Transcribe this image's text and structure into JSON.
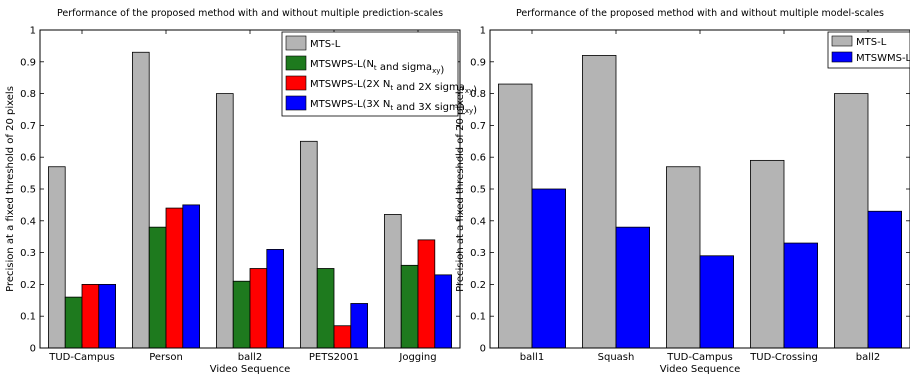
{
  "chart_data": [
    {
      "type": "bar",
      "title": "Performance of the proposed method with and without multiple prediction-scales",
      "xlabel": "Video Sequence",
      "ylabel": "Precision at a fixed threshold of 20 pixels",
      "ylim": [
        0,
        1
      ],
      "yticks": [
        "0",
        "0.1",
        "0.2",
        "0.3",
        "0.4",
        "0.5",
        "0.6",
        "0.7",
        "0.8",
        "0.9",
        "1"
      ],
      "categories": [
        "TUD-Campus",
        "Person",
        "ball2",
        "PETS2001",
        "Jogging"
      ],
      "legend_position": "top-right",
      "series": [
        {
          "name": "MTS-L",
          "color": "#b4b4b4",
          "values": [
            0.57,
            0.93,
            0.8,
            0.65,
            0.42
          ]
        },
        {
          "name": "MTSWPS-L(Nt and sigmaxy)",
          "color": "#1e7a1e",
          "values": [
            0.16,
            0.38,
            0.21,
            0.25,
            0.26
          ]
        },
        {
          "name": "MTSWPS-L(2X Nt and 2X sigmaxy)",
          "color": "#ff0000",
          "values": [
            0.2,
            0.44,
            0.25,
            0.07,
            0.34
          ]
        },
        {
          "name": "MTSWPS-L(3X Nt and 3X sigmaxy)",
          "color": "#0000ff",
          "values": [
            0.2,
            0.45,
            0.31,
            0.14,
            0.23
          ]
        }
      ]
    },
    {
      "type": "bar",
      "title": "Performance of the proposed method with and without multiple model-scales",
      "xlabel": "Video Sequence",
      "ylabel": "Precision at a fixed threshold of 20 pixels",
      "ylim": [
        0,
        1
      ],
      "yticks": [
        "0",
        "0.1",
        "0.2",
        "0.3",
        "0.4",
        "0.5",
        "0.6",
        "0.7",
        "0.8",
        "0.9",
        "1"
      ],
      "categories": [
        "ball1",
        "Squash",
        "TUD-Campus",
        "TUD-Crossing",
        "ball2"
      ],
      "legend_position": "top-right",
      "series": [
        {
          "name": "MTS-L",
          "color": "#b4b4b4",
          "values": [
            0.83,
            0.92,
            0.57,
            0.59,
            0.8
          ]
        },
        {
          "name": "MTSWMS-L",
          "color": "#0000ff",
          "values": [
            0.5,
            0.38,
            0.29,
            0.33,
            0.43
          ]
        }
      ]
    }
  ]
}
